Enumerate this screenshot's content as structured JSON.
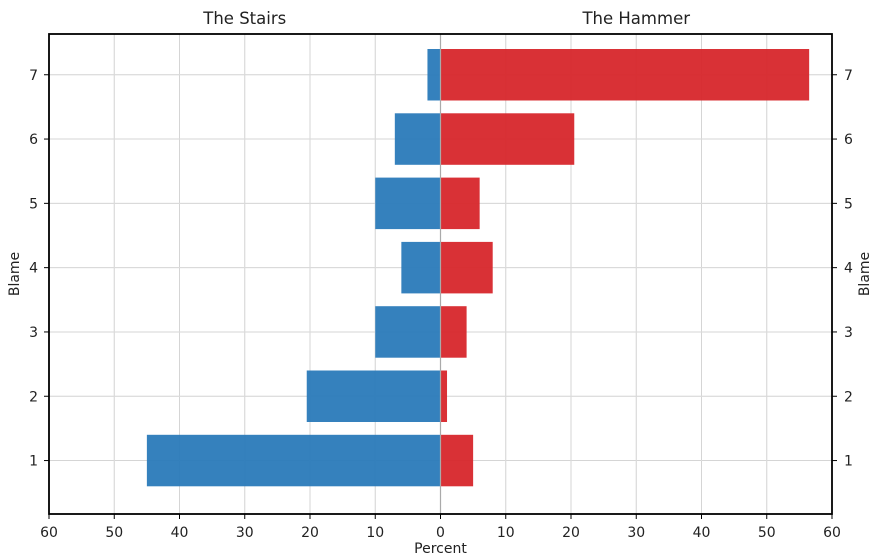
{
  "chart_data": {
    "type": "bar",
    "orientation": "horizontal",
    "layout": "diverging",
    "categories": [
      "1",
      "2",
      "3",
      "4",
      "5",
      "6",
      "7"
    ],
    "series": [
      {
        "name": "The Stairs",
        "values": [
          45,
          20.5,
          10,
          6,
          10,
          7,
          2
        ],
        "color": "#2a7ab9",
        "direction": "left"
      },
      {
        "name": "The Hammer",
        "values": [
          5,
          1,
          4,
          8,
          6,
          20.5,
          56.5
        ],
        "color": "#d7262b",
        "direction": "right"
      }
    ],
    "xlabel": "Percent",
    "ylabel": "Blame",
    "ylabel_right": "Blame",
    "xlim": [
      -60,
      60
    ],
    "xticks": [
      -60,
      -50,
      -40,
      -30,
      -20,
      -10,
      0,
      10,
      20,
      30,
      40,
      50,
      60
    ],
    "xtick_labels": [
      "60",
      "50",
      "40",
      "30",
      "20",
      "10",
      "0",
      "10",
      "20",
      "30",
      "40",
      "50",
      "60"
    ],
    "grid": true,
    "center_line_color": "#aaaaaa"
  }
}
